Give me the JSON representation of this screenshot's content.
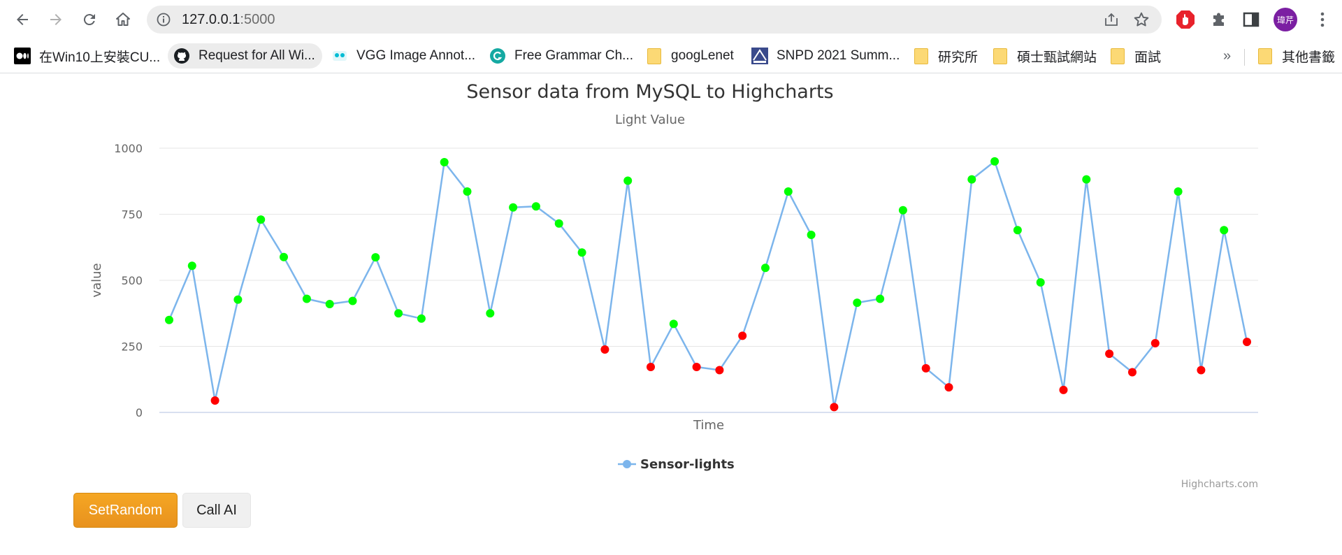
{
  "browser": {
    "url_host": "127.0.0.1",
    "url_port": ":5000",
    "avatar_text": "瑋芹",
    "bookmarks": [
      {
        "label": "在Win10上安裝CU...",
        "icon": "medium-icon"
      },
      {
        "label": "Request for All Wi...",
        "icon": "github-icon"
      },
      {
        "label": "VGG Image Annot...",
        "icon": "vgg-icon"
      },
      {
        "label": "Free Grammar Ch...",
        "icon": "grammarly-icon"
      },
      {
        "label": "googLenet",
        "icon": "folder-icon"
      },
      {
        "label": "SNPD 2021 Summ...",
        "icon": "acis-icon"
      },
      {
        "label": "研究所",
        "icon": "folder-icon"
      },
      {
        "label": "碩士甄試網站",
        "icon": "folder-icon"
      },
      {
        "label": "面試",
        "icon": "folder-icon"
      }
    ],
    "overflow_label": "»",
    "other_bookmarks": "其他書籤"
  },
  "chart_data": {
    "type": "line",
    "title": "Sensor data from MySQL to Highcharts",
    "subtitle": "Light Value",
    "xlabel": "Time",
    "ylabel": "value",
    "ylim": [
      0,
      1000
    ],
    "yticks": [
      0,
      250,
      500,
      750,
      1000
    ],
    "grid": true,
    "legend_position": "bottom-center",
    "credits": "Highcharts.com",
    "line_color": "#7cb5ec",
    "high_color": "#00ff00",
    "low_color": "#ff0000",
    "threshold": 300,
    "series": [
      {
        "name": "Sensor-lights",
        "values": [
          350,
          555,
          45,
          427,
          730,
          588,
          430,
          410,
          422,
          587,
          375,
          355,
          947,
          836,
          375,
          776,
          780,
          715,
          605,
          238,
          877,
          172,
          335,
          172,
          160,
          290,
          547,
          836,
          672,
          20,
          415,
          430,
          765,
          167,
          95,
          882,
          950,
          690,
          492,
          85,
          882,
          222,
          152,
          262,
          836,
          160,
          690,
          267
        ]
      }
    ]
  },
  "buttons": {
    "set_random": "SetRandom",
    "call_ai": "Call AI"
  }
}
